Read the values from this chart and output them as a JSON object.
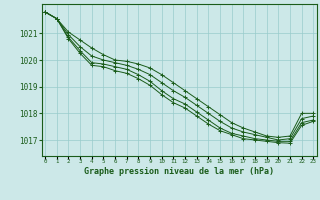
{
  "background_color": "#cce8e8",
  "grid_color": "#99cccc",
  "line_color": "#1a5c1a",
  "marker": "+",
  "title": "Graphe pression niveau de la mer (hPa)",
  "ylim": [
    1016.4,
    1022.1
  ],
  "yticks": [
    1017,
    1018,
    1019,
    1020,
    1021
  ],
  "xlim": [
    -0.3,
    23.3
  ],
  "lines": [
    [
      1021.8,
      1021.55,
      1021.05,
      1020.75,
      1020.45,
      1020.2,
      1020.0,
      1019.95,
      1019.85,
      1019.7,
      1019.45,
      1019.15,
      1018.85,
      1018.55,
      1018.25,
      1017.95,
      1017.65,
      1017.45,
      1017.3,
      1017.15,
      1017.1,
      1017.15,
      1018.0,
      1018.0
    ],
    [
      1021.8,
      1021.55,
      1020.95,
      1020.5,
      1020.15,
      1020.0,
      1019.9,
      1019.8,
      1019.65,
      1019.45,
      1019.15,
      1018.85,
      1018.6,
      1018.3,
      1018.0,
      1017.7,
      1017.45,
      1017.3,
      1017.2,
      1017.1,
      1017.0,
      1017.05,
      1017.8,
      1017.9
    ],
    [
      1021.8,
      1021.55,
      1020.85,
      1020.35,
      1019.9,
      1019.85,
      1019.75,
      1019.65,
      1019.45,
      1019.2,
      1018.85,
      1018.55,
      1018.35,
      1018.05,
      1017.75,
      1017.45,
      1017.25,
      1017.15,
      1017.05,
      1017.0,
      1016.95,
      1016.95,
      1017.65,
      1017.75
    ],
    [
      1021.8,
      1021.55,
      1020.8,
      1020.25,
      1019.8,
      1019.75,
      1019.6,
      1019.5,
      1019.3,
      1019.05,
      1018.7,
      1018.4,
      1018.2,
      1017.9,
      1017.6,
      1017.35,
      1017.2,
      1017.05,
      1017.0,
      1016.95,
      1016.9,
      1016.88,
      1017.55,
      1017.7
    ]
  ]
}
